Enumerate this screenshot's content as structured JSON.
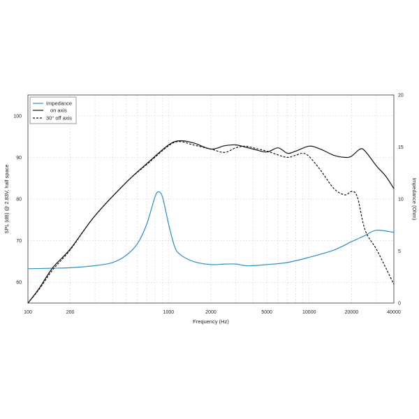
{
  "chart_data": {
    "type": "line",
    "xlabel": "Frequency (Hz)",
    "ylabel": "SPL (dB) @ 2.83V, half space",
    "y2label": "Impedance (Ohm)",
    "xscale": "log",
    "xlim": [
      100,
      40000
    ],
    "ylim": [
      55,
      105
    ],
    "y2lim": [
      0,
      20
    ],
    "grid": true,
    "legend_position": "top-left",
    "x_ticks": [
      100,
      200,
      1000,
      2000,
      5000,
      10000,
      20000,
      40000
    ],
    "x_tick_labels": [
      "100",
      "200",
      "1000",
      "2000",
      "5000",
      "10000",
      "20000",
      "40000"
    ],
    "y_ticks": [
      60,
      70,
      80,
      90,
      100
    ],
    "y_tick_labels": [
      "60",
      "70",
      "80",
      "90",
      "100"
    ],
    "y2_ticks": [
      0,
      5,
      10,
      15,
      20
    ],
    "y2_tick_labels": [
      "0",
      "5",
      "10",
      "15",
      "20"
    ],
    "series": [
      {
        "name": "Impedance",
        "axis": "right",
        "color": "#2a8fc4",
        "dash": "solid",
        "x": [
          100,
          150,
          200,
          300,
          400,
          500,
          600,
          700,
          800,
          850,
          900,
          950,
          1000,
          1100,
          1200,
          1500,
          2000,
          2500,
          3000,
          3500,
          4000,
          5000,
          7000,
          10000,
          15000,
          20000,
          25000,
          30000,
          40000
        ],
        "y": [
          3.3,
          3.35,
          3.4,
          3.6,
          3.9,
          4.6,
          5.7,
          7.6,
          10.2,
          10.7,
          10.3,
          9.0,
          7.6,
          5.5,
          4.7,
          4.0,
          3.7,
          3.75,
          3.75,
          3.6,
          3.6,
          3.7,
          3.9,
          4.4,
          5.1,
          5.9,
          6.5,
          7.0,
          6.8
        ]
      },
      {
        "name": "on axis",
        "axis": "left",
        "color": "#111111",
        "dash": "solid",
        "x": [
          100,
          120,
          150,
          200,
          300,
          500,
          700,
          1000,
          1200,
          1500,
          2000,
          2500,
          3000,
          3500,
          4000,
          5000,
          6000,
          7000,
          8000,
          10000,
          12000,
          15000,
          18000,
          20000,
          23000,
          25000,
          30000,
          35000,
          40000
        ],
        "y": [
          55.0,
          58.5,
          63.5,
          68.0,
          76.0,
          84.0,
          88.5,
          93.0,
          94.0,
          93.5,
          92.0,
          92.8,
          93.0,
          92.5,
          92.0,
          91.3,
          92.3,
          91.0,
          91.5,
          92.7,
          92.0,
          90.5,
          90.0,
          90.3,
          92.0,
          91.5,
          88.0,
          85.5,
          82.5
        ]
      },
      {
        "name": "30° off axis",
        "axis": "left",
        "color": "#111111",
        "dash": "dashed",
        "x": [
          100,
          120,
          150,
          200,
          300,
          500,
          700,
          1000,
          1200,
          1500,
          2000,
          2500,
          3000,
          3500,
          4000,
          5000,
          6000,
          7000,
          8000,
          9000,
          10000,
          12000,
          15000,
          18000,
          20000,
          22000,
          25000,
          30000,
          35000,
          40000
        ],
        "y": [
          55.0,
          58.3,
          63.0,
          67.8,
          76.0,
          84.0,
          88.3,
          92.8,
          93.8,
          93.0,
          92.0,
          91.2,
          92.3,
          92.7,
          92.3,
          91.5,
          90.6,
          90.0,
          90.5,
          91.0,
          90.2,
          87.0,
          82.5,
          81.0,
          81.8,
          80.5,
          72.5,
          68.0,
          63.5,
          59.5
        ]
      }
    ]
  }
}
